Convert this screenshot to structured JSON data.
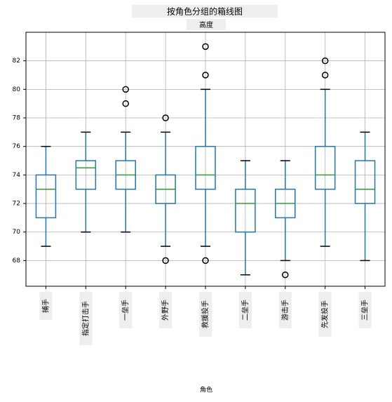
{
  "chart_data": {
    "type": "box",
    "title": "按角色分组的箱线图",
    "subtitle": "高度",
    "x_label": "角色",
    "categories": [
      "捕手",
      "指定打击手",
      "一垒手",
      "外野手",
      "救援投手",
      "二垒手",
      "游击手",
      "先发投手",
      "三垒手"
    ],
    "boxes": [
      {
        "whislo": 69,
        "q1": 71,
        "med": 73,
        "q3": 74,
        "whishi": 76,
        "fliers": []
      },
      {
        "whislo": 70,
        "q1": 73,
        "med": 74.5,
        "q3": 75,
        "whishi": 77,
        "fliers": []
      },
      {
        "whislo": 70,
        "q1": 73,
        "med": 74,
        "q3": 75,
        "whishi": 77,
        "fliers": [
          79,
          80
        ]
      },
      {
        "whislo": 69,
        "q1": 72,
        "med": 73,
        "q3": 74,
        "whishi": 77,
        "fliers": [
          78,
          68
        ]
      },
      {
        "whislo": 69,
        "q1": 73,
        "med": 74,
        "q3": 76,
        "whishi": 80,
        "fliers": [
          83,
          81,
          68
        ]
      },
      {
        "whislo": 67,
        "q1": 70,
        "med": 72,
        "q3": 73,
        "whishi": 75,
        "fliers": []
      },
      {
        "whislo": 68,
        "q1": 71,
        "med": 72,
        "q3": 73,
        "whishi": 75,
        "fliers": [
          67
        ]
      },
      {
        "whislo": 69,
        "q1": 73,
        "med": 74,
        "q3": 76,
        "whishi": 80,
        "fliers": [
          82,
          81
        ]
      },
      {
        "whislo": 68,
        "q1": 72,
        "med": 73,
        "q3": 75,
        "whishi": 77,
        "fliers": []
      }
    ],
    "box_color": "#1f77b4",
    "median_color": "#2ca02c",
    "flier_color": "#000000",
    "ylim": [
      66.2,
      84
    ],
    "yticks": [
      68,
      70,
      72,
      74,
      76,
      78,
      80,
      82
    ],
    "grid": true
  }
}
